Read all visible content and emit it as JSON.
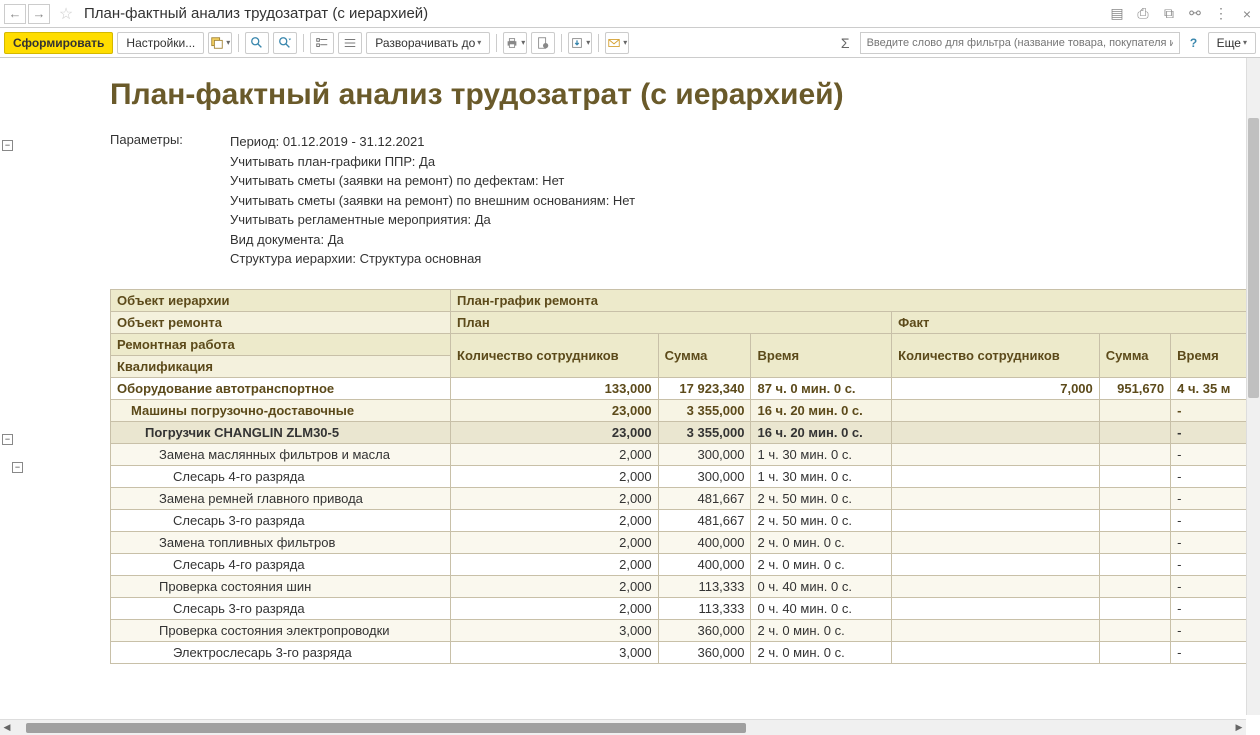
{
  "titlebar": {
    "title": "План-фактный анализ трудозатрат (с иерархией)"
  },
  "toolbar": {
    "generate": "Сформировать",
    "settings": "Настройки...",
    "expand_to": "Разворачивать до",
    "more": "Еще",
    "search_placeholder": "Введите слово для фильтра (название товара, покупателя и п...",
    "sum_symbol": "Σ"
  },
  "report": {
    "title": "План-фактный анализ трудозатрат (с иерархией)",
    "params_label": "Параметры:",
    "params": [
      "Период: 01.12.2019 - 31.12.2021",
      "Учитывать план-графики ППР: Да",
      "Учитывать сметы (заявки на ремонт) по дефектам: Нет",
      "Учитывать сметы (заявки на ремонт) по внешним основаниям: Нет",
      "Учитывать регламентные мероприятия: Да",
      "Вид документа: Да",
      "Структура иерархии: Структура основная"
    ]
  },
  "table": {
    "headers": {
      "hier_object": "Объект иерархии",
      "repair_schedule": "План-график ремонта",
      "repair_object": "Объект ремонта",
      "plan": "План",
      "fact": "Факт",
      "repair_work": "Ремонтная работа",
      "qualification": "Квалификация",
      "qty": "Количество сотрудников",
      "sum": "Сумма",
      "time": "Время"
    },
    "rows": [
      {
        "lvl": 0,
        "name": "Оборудование автотранспортное",
        "p_qty": "133,000",
        "p_sum": "17 923,340",
        "p_time": "87 ч. 0 мин. 0 с.",
        "f_qty": "7,000",
        "f_sum": "951,670",
        "f_time": "4 ч. 35 м"
      },
      {
        "lvl": 1,
        "name": "Машины погрузочно-доставочные",
        "p_qty": "23,000",
        "p_sum": "3 355,000",
        "p_time": "16 ч. 20 мин. 0 с.",
        "f_qty": "",
        "f_sum": "",
        "f_time": "-"
      },
      {
        "lvl": 2,
        "name": "Погрузчик CHANGLIN ZLM30-5",
        "p_qty": "23,000",
        "p_sum": "3 355,000",
        "p_time": "16 ч. 20 мин. 0 с.",
        "f_qty": "",
        "f_sum": "",
        "f_time": "-"
      },
      {
        "lvl": 3,
        "name": "Замена маслянных фильтров и масла",
        "p_qty": "2,000",
        "p_sum": "300,000",
        "p_time": "1 ч. 30 мин. 0 с.",
        "f_qty": "",
        "f_sum": "",
        "f_time": "-"
      },
      {
        "lvl": 4,
        "name": "Слесарь 4-го разряда",
        "p_qty": "2,000",
        "p_sum": "300,000",
        "p_time": "1 ч. 30 мин. 0 с.",
        "f_qty": "",
        "f_sum": "",
        "f_time": "-"
      },
      {
        "lvl": 3,
        "name": "Замена ремней главного привода",
        "p_qty": "2,000",
        "p_sum": "481,667",
        "p_time": "2 ч. 50 мин. 0 с.",
        "f_qty": "",
        "f_sum": "",
        "f_time": "-"
      },
      {
        "lvl": 4,
        "name": "Слесарь 3-го разряда",
        "p_qty": "2,000",
        "p_sum": "481,667",
        "p_time": "2 ч. 50 мин. 0 с.",
        "f_qty": "",
        "f_sum": "",
        "f_time": "-"
      },
      {
        "lvl": 3,
        "name": "Замена топливных фильтров",
        "p_qty": "2,000",
        "p_sum": "400,000",
        "p_time": "2 ч. 0 мин. 0 с.",
        "f_qty": "",
        "f_sum": "",
        "f_time": "-"
      },
      {
        "lvl": 4,
        "name": "Слесарь 4-го разряда",
        "p_qty": "2,000",
        "p_sum": "400,000",
        "p_time": "2 ч. 0 мин. 0 с.",
        "f_qty": "",
        "f_sum": "",
        "f_time": "-"
      },
      {
        "lvl": 3,
        "name": "Проверка состояния шин",
        "p_qty": "2,000",
        "p_sum": "113,333",
        "p_time": "0 ч. 40 мин. 0 с.",
        "f_qty": "",
        "f_sum": "",
        "f_time": "-"
      },
      {
        "lvl": 4,
        "name": "Слесарь 3-го разряда",
        "p_qty": "2,000",
        "p_sum": "113,333",
        "p_time": "0 ч. 40 мин. 0 с.",
        "f_qty": "",
        "f_sum": "",
        "f_time": "-"
      },
      {
        "lvl": 3,
        "name": "Проверка состояния электропроводки",
        "p_qty": "3,000",
        "p_sum": "360,000",
        "p_time": "2 ч. 0 мин. 0 с.",
        "f_qty": "",
        "f_sum": "",
        "f_time": "-"
      },
      {
        "lvl": 4,
        "name": "Электрослесарь 3-го разряда",
        "p_qty": "3,000",
        "p_sum": "360,000",
        "p_time": "2 ч. 0 мин. 0 с.",
        "f_qty": "",
        "f_sum": "",
        "f_time": "-"
      }
    ]
  },
  "colors": {
    "accent_yellow": "#ffdd00",
    "header_bg": "#edeacb",
    "header_text": "#5c4a1a",
    "title_color": "#6a5a2a",
    "border": "#c8c0a8"
  }
}
